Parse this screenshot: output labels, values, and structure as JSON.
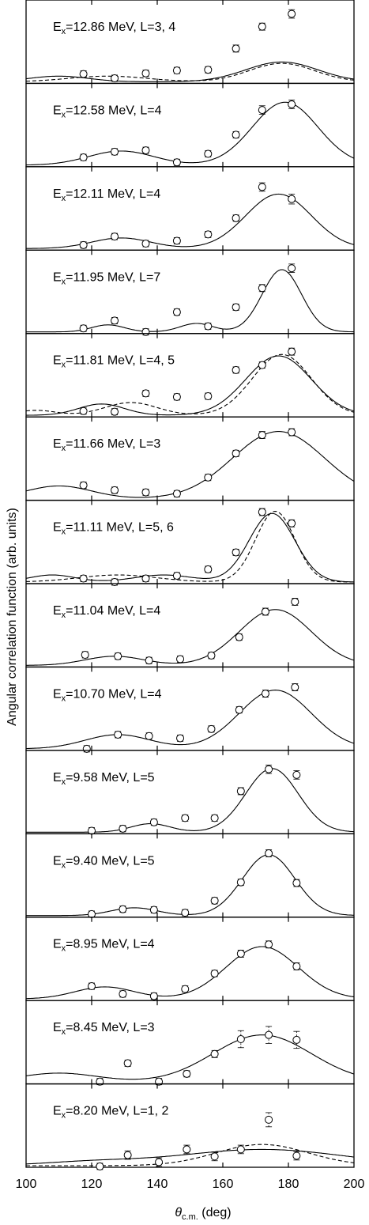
{
  "chart_data": {
    "type": "scatter",
    "layout": "stacked-panels",
    "xlabel": "θ",
    "xlabel_sub": "c.m.",
    "xlabel_unit": " (deg)",
    "ylabel": "Angular correlation function (arb. units)",
    "xlim": [
      100,
      200
    ],
    "xticks": [
      100,
      120,
      140,
      160,
      180,
      200
    ],
    "xtick_labels": [
      "100",
      "120",
      "140",
      "160",
      "180",
      "200"
    ],
    "grid": false,
    "panels": [
      {
        "label": {
          "pre": "E",
          "sub": "x",
          "post": "=12.86 MeV, L=3, 4"
        },
        "points": [
          {
            "x": 117.5,
            "y": 0.11,
            "err": 0.02
          },
          {
            "x": 127,
            "y": 0.05,
            "err": 0.02
          },
          {
            "x": 136.5,
            "y": 0.12,
            "err": 0.02
          },
          {
            "x": 146,
            "y": 0.16,
            "err": 0.03
          },
          {
            "x": 155.5,
            "y": 0.17,
            "err": 0.04
          },
          {
            "x": 164,
            "y": 0.47,
            "err": 0.05
          },
          {
            "x": 172,
            "y": 0.78,
            "err": 0.05
          },
          {
            "x": 181,
            "y": 0.96,
            "err": 0.06
          }
        ],
        "curves": [
          {
            "style": "solid",
            "amps": [
              0.28,
              0.08
            ],
            "centers": [
              178,
              110
            ],
            "widths": [
              11,
              9
            ]
          },
          {
            "style": "dashed",
            "amps": [
              0.26,
              0.08
            ],
            "centers": [
              178,
              125
            ],
            "widths": [
              10,
              12
            ]
          }
        ]
      },
      {
        "label": {
          "pre": "E",
          "sub": "x",
          "post": "=12.58 MeV, L=4"
        },
        "points": [
          {
            "x": 117.5,
            "y": 0.11,
            "err": 0.02
          },
          {
            "x": 127,
            "y": 0.19,
            "err": 0.03
          },
          {
            "x": 136.5,
            "y": 0.21,
            "err": 0.03
          },
          {
            "x": 146,
            "y": 0.04,
            "err": 0.02
          },
          {
            "x": 155.5,
            "y": 0.16,
            "err": 0.03
          },
          {
            "x": 164,
            "y": 0.43,
            "err": 0.04
          },
          {
            "x": 172,
            "y": 0.78,
            "err": 0.06
          },
          {
            "x": 181,
            "y": 0.86,
            "err": 0.06
          }
        ],
        "curves": [
          {
            "style": "solid",
            "amps": [
              0.89,
              0.2
            ],
            "centers": [
              179,
              129
            ],
            "widths": [
              10,
              10
            ]
          }
        ]
      },
      {
        "label": {
          "pre": "E",
          "sub": "x",
          "post": "=12.11 MeV, L=4"
        },
        "points": [
          {
            "x": 117.5,
            "y": 0.05,
            "err": 0.02
          },
          {
            "x": 127,
            "y": 0.17,
            "err": 0.03
          },
          {
            "x": 136.5,
            "y": 0.07,
            "err": 0.02
          },
          {
            "x": 146,
            "y": 0.11,
            "err": 0.02
          },
          {
            "x": 155.5,
            "y": 0.2,
            "err": 0.03
          },
          {
            "x": 164,
            "y": 0.43,
            "err": 0.04
          },
          {
            "x": 172,
            "y": 0.87,
            "err": 0.06
          },
          {
            "x": 181,
            "y": 0.7,
            "err": 0.07
          }
        ],
        "curves": [
          {
            "style": "solid",
            "amps": [
              0.77,
              0.15
            ],
            "centers": [
              177,
              129
            ],
            "widths": [
              10,
              9
            ]
          }
        ]
      },
      {
        "label": {
          "pre": "E",
          "sub": "x",
          "post": "=11.95 MeV, L=7"
        },
        "points": [
          {
            "x": 117.5,
            "y": 0.05,
            "err": 0.02
          },
          {
            "x": 127,
            "y": 0.16,
            "err": 0.03
          },
          {
            "x": 136.5,
            "y": 0.0,
            "err": 0.02
          },
          {
            "x": 146,
            "y": 0.28,
            "err": 0.04
          },
          {
            "x": 155.5,
            "y": 0.08,
            "err": 0.02
          },
          {
            "x": 164,
            "y": 0.35,
            "err": 0.04
          },
          {
            "x": 172,
            "y": 0.62,
            "err": 0.05
          },
          {
            "x": 181,
            "y": 0.9,
            "err": 0.06
          }
        ],
        "curves": [
          {
            "style": "solid",
            "amps": [
              0.88,
              0.12,
              0.1
            ],
            "centers": [
              178,
              152,
              125
            ],
            "widths": [
              6,
              5,
              5
            ]
          }
        ]
      },
      {
        "label": {
          "pre": "E",
          "sub": "x",
          "post": "=11.81 MeV, L=4, 5"
        },
        "points": [
          {
            "x": 117.5,
            "y": 0.06,
            "err": 0.02
          },
          {
            "x": 127,
            "y": 0.05,
            "err": 0.02
          },
          {
            "x": 136.5,
            "y": 0.31,
            "err": 0.03
          },
          {
            "x": 146,
            "y": 0.26,
            "err": 0.03
          },
          {
            "x": 155.5,
            "y": 0.27,
            "err": 0.03
          },
          {
            "x": 164,
            "y": 0.64,
            "err": 0.04
          },
          {
            "x": 172,
            "y": 0.71,
            "err": 0.04
          },
          {
            "x": 181,
            "y": 0.9,
            "err": 0.05
          }
        ],
        "curves": [
          {
            "style": "solid",
            "amps": [
              0.84,
              0.16
            ],
            "centers": [
              177,
              123
            ],
            "widths": [
              10,
              7
            ]
          },
          {
            "style": "dashed",
            "amps": [
              0.86,
              0.18,
              0.07
            ],
            "centers": [
              178,
              132,
              103
            ],
            "widths": [
              9,
              8,
              6
            ]
          }
        ]
      },
      {
        "label": {
          "pre": "E",
          "sub": "x",
          "post": "=11.66 MeV, L=3"
        },
        "points": [
          {
            "x": 117.5,
            "y": 0.19,
            "err": 0.02
          },
          {
            "x": 127,
            "y": 0.12,
            "err": 0.02
          },
          {
            "x": 136.5,
            "y": 0.09,
            "err": 0.02
          },
          {
            "x": 146,
            "y": 0.07,
            "err": 0.02
          },
          {
            "x": 155.5,
            "y": 0.3,
            "err": 0.03
          },
          {
            "x": 164,
            "y": 0.64,
            "err": 0.04
          },
          {
            "x": 172,
            "y": 0.9,
            "err": 0.05
          },
          {
            "x": 181,
            "y": 0.94,
            "err": 0.05
          }
        ],
        "curves": [
          {
            "style": "solid",
            "amps": [
              0.95,
              0.18
            ],
            "centers": [
              177,
              110
            ],
            "widths": [
              14,
              10
            ]
          }
        ]
      },
      {
        "label": {
          "pre": "E",
          "sub": "x",
          "post": "=11.11 MeV, L=5, 6"
        },
        "points": [
          {
            "x": 117.5,
            "y": 0.05,
            "err": 0.02
          },
          {
            "x": 127,
            "y": 0.0,
            "err": 0.02
          },
          {
            "x": 136.5,
            "y": 0.05,
            "err": 0.02
          },
          {
            "x": 146,
            "y": 0.09,
            "err": 0.02
          },
          {
            "x": 155.5,
            "y": 0.18,
            "err": 0.03
          },
          {
            "x": 164,
            "y": 0.42,
            "err": 0.04
          },
          {
            "x": 172,
            "y": 0.99,
            "err": 0.05
          },
          {
            "x": 181,
            "y": 0.83,
            "err": 0.05
          }
        ],
        "curves": [
          {
            "style": "solid",
            "amps": [
              0.97,
              0.1,
              0.1
            ],
            "centers": [
              175,
              142,
              108
            ],
            "widths": [
              7,
              9,
              7
            ]
          },
          {
            "style": "dashed",
            "amps": [
              1.0,
              0.1
            ],
            "centers": [
              176,
              128
            ],
            "widths": [
              6,
              12
            ]
          }
        ]
      },
      {
        "label": {
          "pre": "E",
          "sub": "x",
          "post": "=11.04 MeV, L=4"
        },
        "points": [
          {
            "x": 118,
            "y": 0.15,
            "err": 0.02
          },
          {
            "x": 128,
            "y": 0.13,
            "err": 0.02
          },
          {
            "x": 137.5,
            "y": 0.07,
            "err": 0.02
          },
          {
            "x": 147,
            "y": 0.09,
            "err": 0.02
          },
          {
            "x": 156.5,
            "y": 0.14,
            "err": 0.03
          },
          {
            "x": 165,
            "y": 0.4,
            "err": 0.04
          },
          {
            "x": 173,
            "y": 0.76,
            "err": 0.05
          },
          {
            "x": 182,
            "y": 0.9,
            "err": 0.05
          }
        ],
        "curves": [
          {
            "style": "solid",
            "amps": [
              0.79,
              0.13
            ],
            "centers": [
              176,
              127
            ],
            "widths": [
              11,
              9
            ]
          }
        ]
      },
      {
        "label": {
          "pre": "E",
          "sub": "x",
          "post": "=10.70 MeV, L=4"
        },
        "points": [
          {
            "x": 118.5,
            "y": 0.0,
            "err": 0.02
          },
          {
            "x": 128,
            "y": 0.2,
            "err": 0.03
          },
          {
            "x": 137.5,
            "y": 0.18,
            "err": 0.03
          },
          {
            "x": 147,
            "y": 0.15,
            "err": 0.03
          },
          {
            "x": 156.5,
            "y": 0.28,
            "err": 0.03
          },
          {
            "x": 165,
            "y": 0.55,
            "err": 0.04
          },
          {
            "x": 173,
            "y": 0.78,
            "err": 0.05
          },
          {
            "x": 182,
            "y": 0.87,
            "err": 0.05
          }
        ],
        "curves": [
          {
            "style": "solid",
            "amps": [
              0.83,
              0.2
            ],
            "centers": [
              176,
              128
            ],
            "widths": [
              11,
              10
            ]
          }
        ]
      },
      {
        "label": {
          "pre": "E",
          "sub": "x",
          "post": "=9.58 MeV, L=5"
        },
        "points": [
          {
            "x": 120,
            "y": 0.02,
            "err": 0.02
          },
          {
            "x": 129.5,
            "y": 0.05,
            "err": 0.02
          },
          {
            "x": 139,
            "y": 0.14,
            "err": 0.03
          },
          {
            "x": 148.5,
            "y": 0.2,
            "err": 0.04
          },
          {
            "x": 157.5,
            "y": 0.2,
            "err": 0.04
          },
          {
            "x": 165.5,
            "y": 0.58,
            "err": 0.05
          },
          {
            "x": 174,
            "y": 0.89,
            "err": 0.06
          },
          {
            "x": 182.5,
            "y": 0.81,
            "err": 0.06
          }
        ],
        "curves": [
          {
            "style": "solid",
            "amps": [
              0.9,
              0.12
            ],
            "centers": [
              175,
              138
            ],
            "widths": [
              8,
              6
            ]
          }
        ]
      },
      {
        "label": {
          "pre": "E",
          "sub": "x",
          "post": "=9.40 MeV, L=5"
        },
        "points": [
          {
            "x": 120,
            "y": 0.02,
            "err": 0.02
          },
          {
            "x": 129.5,
            "y": 0.09,
            "err": 0.02
          },
          {
            "x": 139,
            "y": 0.08,
            "err": 0.02
          },
          {
            "x": 148.5,
            "y": 0.04,
            "err": 0.02
          },
          {
            "x": 157.5,
            "y": 0.21,
            "err": 0.03
          },
          {
            "x": 165.5,
            "y": 0.47,
            "err": 0.04
          },
          {
            "x": 174,
            "y": 0.88,
            "err": 0.05
          },
          {
            "x": 182.5,
            "y": 0.46,
            "err": 0.05
          }
        ],
        "curves": [
          {
            "style": "solid",
            "amps": [
              0.86,
              0.11
            ],
            "centers": [
              174,
              133
            ],
            "widths": [
              8,
              7
            ]
          }
        ]
      },
      {
        "label": {
          "pre": "E",
          "sub": "x",
          "post": "=8.95 MeV, L=4"
        },
        "points": [
          {
            "x": 120,
            "y": 0.18,
            "err": 0.03
          },
          {
            "x": 129.5,
            "y": 0.07,
            "err": 0.02
          },
          {
            "x": 139,
            "y": 0.04,
            "err": 0.02
          },
          {
            "x": 148.5,
            "y": 0.14,
            "err": 0.02
          },
          {
            "x": 157.5,
            "y": 0.36,
            "err": 0.03
          },
          {
            "x": 165.5,
            "y": 0.64,
            "err": 0.05
          },
          {
            "x": 174,
            "y": 0.77,
            "err": 0.05
          },
          {
            "x": 182.5,
            "y": 0.46,
            "err": 0.05
          }
        ],
        "curves": [
          {
            "style": "solid",
            "amps": [
              0.74,
              0.17
            ],
            "centers": [
              172,
              124
            ],
            "widths": [
              11,
              9
            ]
          }
        ]
      },
      {
        "label": {
          "pre": "E",
          "sub": "x",
          "post": "=8.45 MeV, L=3"
        },
        "points": [
          {
            "x": 122.5,
            "y": 0.01,
            "err": 0.02
          },
          {
            "x": 131,
            "y": 0.27,
            "err": 0.04
          },
          {
            "x": 140.5,
            "y": 0.01,
            "err": 0.02
          },
          {
            "x": 149,
            "y": 0.12,
            "err": 0.04
          },
          {
            "x": 157.5,
            "y": 0.4,
            "err": 0.05
          },
          {
            "x": 165.5,
            "y": 0.61,
            "err": 0.12
          },
          {
            "x": 174,
            "y": 0.67,
            "err": 0.12
          },
          {
            "x": 182.5,
            "y": 0.6,
            "err": 0.12
          }
        ],
        "curves": [
          {
            "style": "solid",
            "amps": [
              0.67,
              0.13
            ],
            "centers": [
              172,
              110
            ],
            "widths": [
              15,
              12
            ]
          }
        ]
      },
      {
        "label": {
          "pre": "E",
          "sub": "x",
          "post": "=8.20 MeV, L=1, 2"
        },
        "points": [
          {
            "x": 122.5,
            "y": -0.01,
            "err": 0.02
          },
          {
            "x": 131,
            "y": 0.15,
            "err": 0.06
          },
          {
            "x": 140.5,
            "y": 0.05,
            "err": 0.06
          },
          {
            "x": 149,
            "y": 0.23,
            "err": 0.06
          },
          {
            "x": 157.5,
            "y": 0.13,
            "err": 0.06
          },
          {
            "x": 165.5,
            "y": 0.23,
            "err": 0.06
          },
          {
            "x": 174,
            "y": 0.65,
            "err": 0.1
          },
          {
            "x": 182.5,
            "y": 0.14,
            "err": 0.06
          }
        ],
        "curves": [
          {
            "style": "solid",
            "amps": [
              0.23,
              0.05
            ],
            "centers": [
              172,
              120
            ],
            "widths": [
              25,
              15
            ]
          },
          {
            "style": "dashed",
            "amps": [
              0.3
            ],
            "centers": [
              172
            ],
            "widths": [
              14
            ]
          }
        ]
      }
    ]
  }
}
